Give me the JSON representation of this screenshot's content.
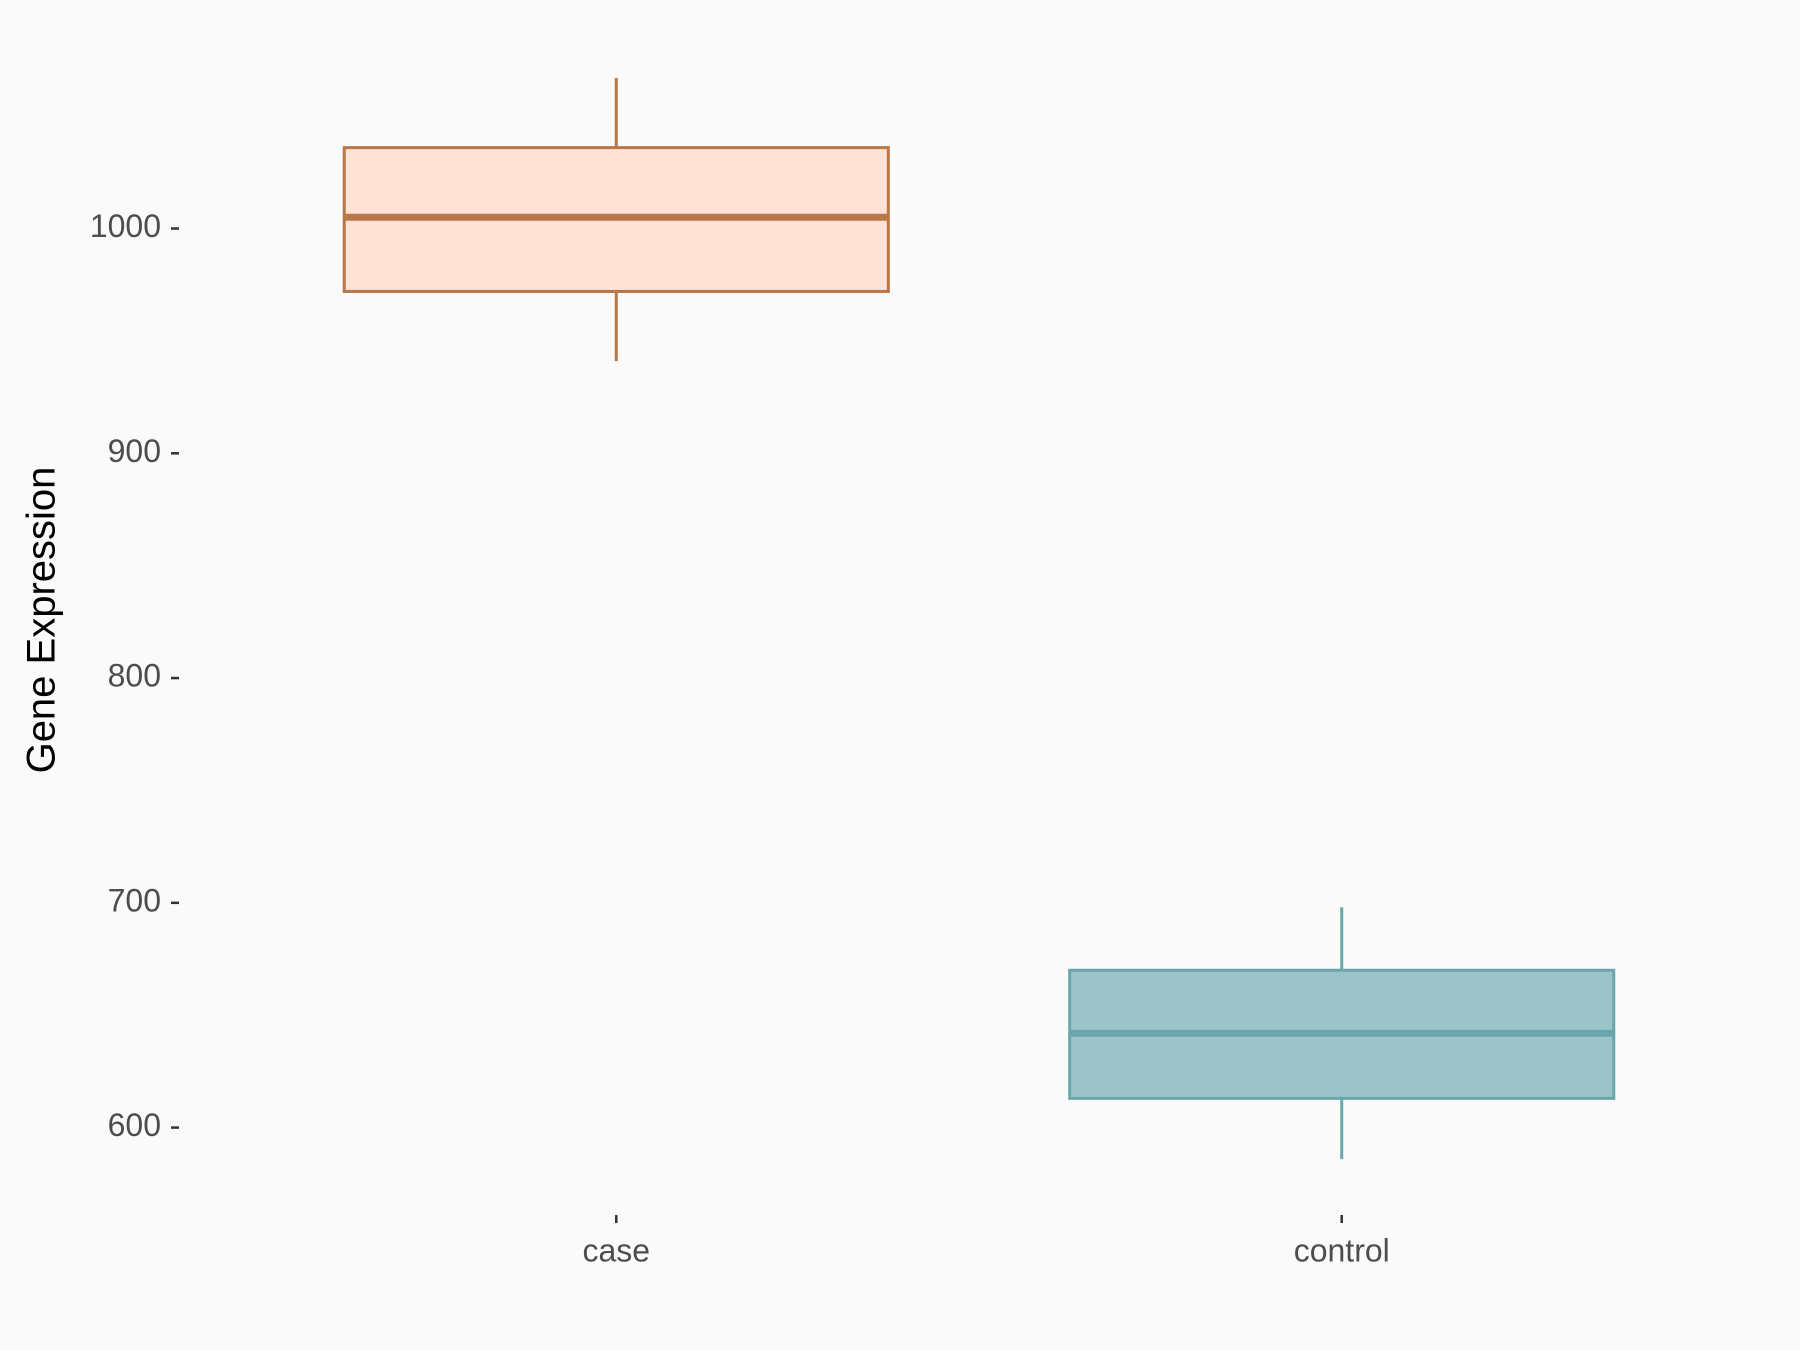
{
  "chart_data": {
    "type": "box",
    "ylabel": "Gene Expression",
    "categories": [
      "case",
      "control"
    ],
    "boxes": [
      {
        "min": 941,
        "q1": 972,
        "median": 1005,
        "q3": 1036,
        "max": 1067
      },
      {
        "min": 586,
        "q1": 613,
        "median": 642,
        "q3": 670,
        "max": 698
      }
    ],
    "fill_colors": [
      "#ffe1d6",
      "#9cc4c8"
    ],
    "line_colors": [
      "#b87749",
      "#69a7ad"
    ],
    "ylim": [
      562,
      1091
    ],
    "yticks": [
      600,
      700,
      800,
      900,
      1000
    ],
    "grid": false
  }
}
